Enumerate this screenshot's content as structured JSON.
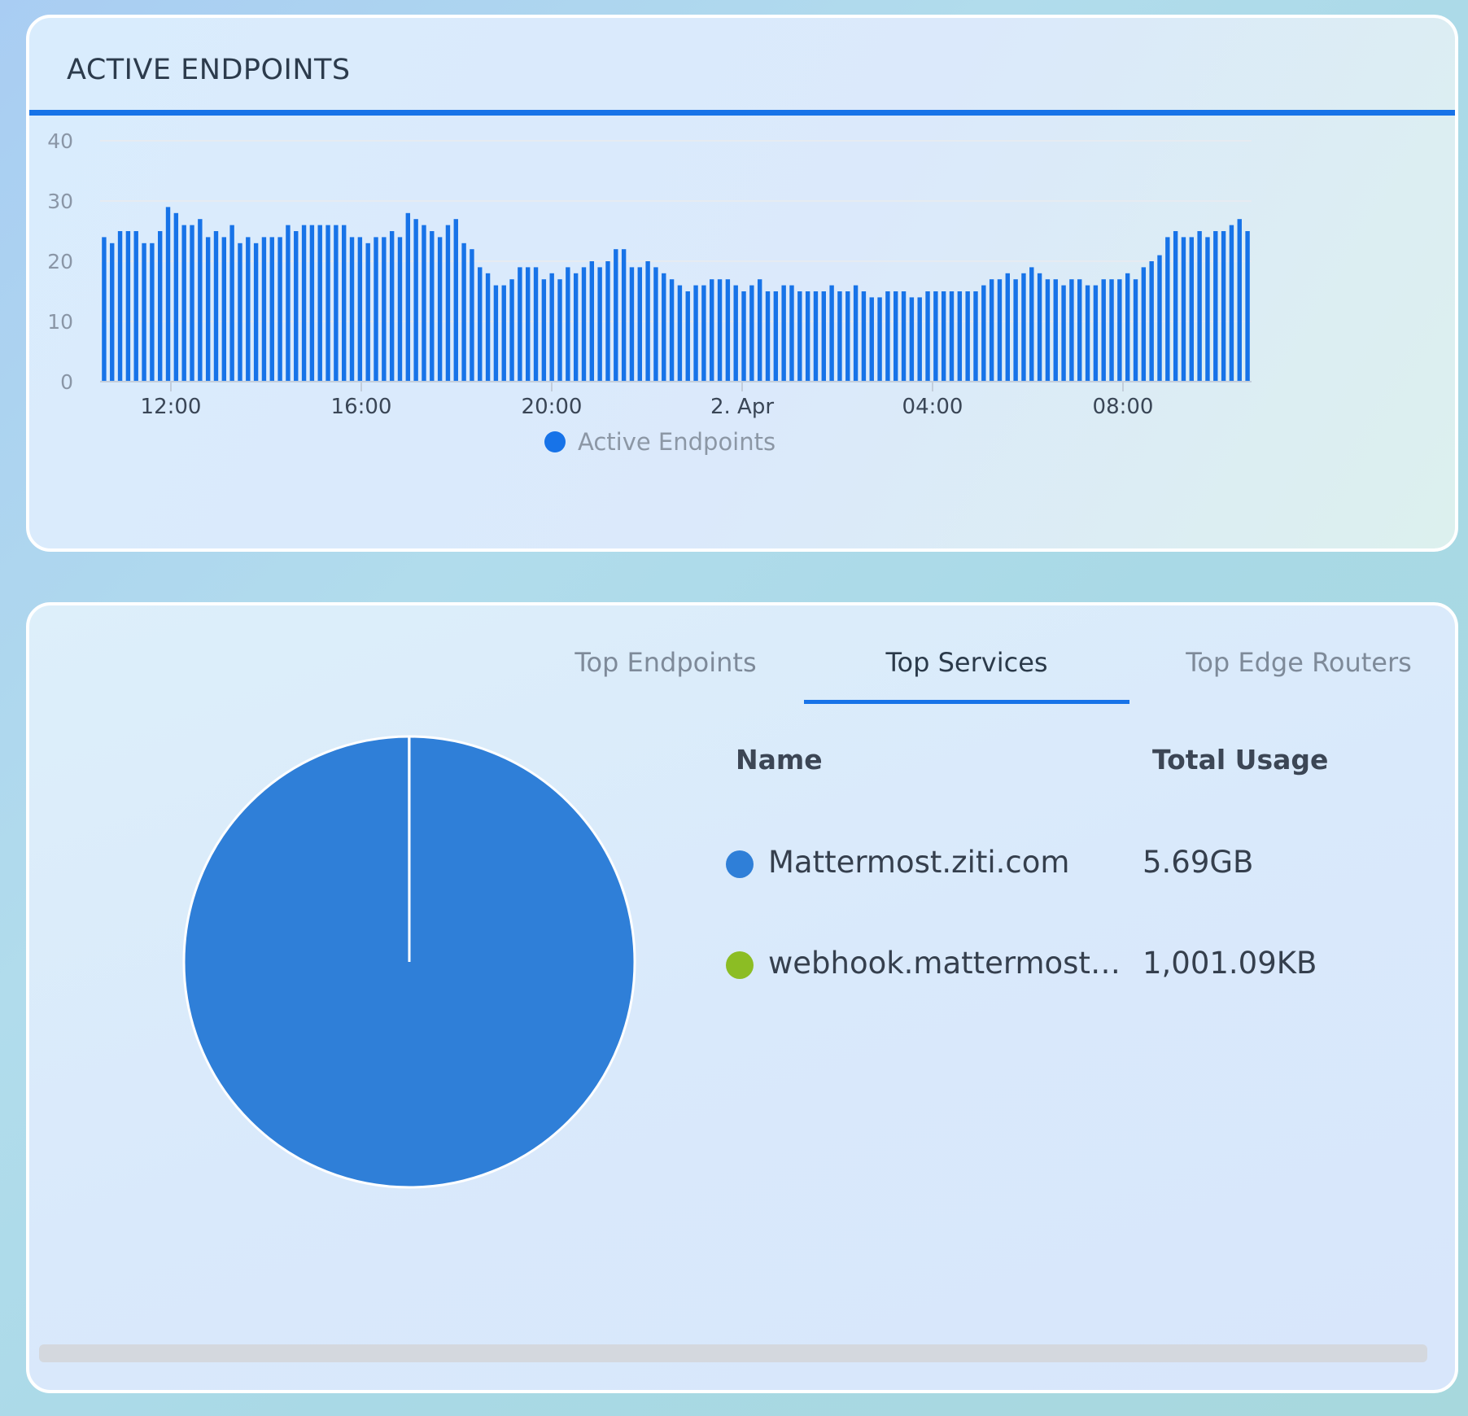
{
  "endpoints_card": {
    "title": "ACTIVE ENDPOINTS",
    "accent_color": "#1773e8"
  },
  "chart_data": {
    "type": "bar",
    "title": "ACTIVE ENDPOINTS",
    "ylim": [
      0,
      40
    ],
    "yticks": [
      "0",
      "10",
      "20",
      "30",
      "40"
    ],
    "xticks": [
      "12:00",
      "16:00",
      "20:00",
      "2. Apr",
      "04:00",
      "08:00"
    ],
    "grid": true,
    "legend_position": "bottom",
    "series": [
      {
        "name": "Active Endpoints",
        "color": "#1773e8",
        "values": [
          24,
          23,
          25,
          25,
          25,
          23,
          23,
          25,
          29,
          28,
          26,
          26,
          27,
          24,
          25,
          24,
          26,
          23,
          24,
          23,
          24,
          24,
          24,
          26,
          25,
          26,
          26,
          26,
          26,
          26,
          26,
          24,
          24,
          23,
          24,
          24,
          25,
          24,
          28,
          27,
          26,
          25,
          24,
          26,
          27,
          23,
          22,
          19,
          18,
          16,
          16,
          17,
          19,
          19,
          19,
          17,
          18,
          17,
          19,
          18,
          19,
          20,
          19,
          20,
          22,
          22,
          19,
          19,
          20,
          19,
          18,
          17,
          16,
          15,
          16,
          16,
          17,
          17,
          17,
          16,
          15,
          16,
          17,
          15,
          15,
          16,
          16,
          15,
          15,
          15,
          15,
          16,
          15,
          15,
          16,
          15,
          14,
          14,
          15,
          15,
          15,
          14,
          14,
          15,
          15,
          15,
          15,
          15,
          15,
          15,
          16,
          17,
          17,
          18,
          17,
          18,
          19,
          18,
          17,
          17,
          16,
          17,
          17,
          16,
          16,
          17,
          17,
          17,
          18,
          17,
          19,
          20,
          21,
          24,
          25,
          24,
          24,
          25,
          24,
          25,
          25,
          26,
          27,
          25
        ]
      }
    ]
  },
  "services_card": {
    "tabs": [
      {
        "label": "Top Endpoints",
        "active": false
      },
      {
        "label": "Top Services",
        "active": true
      },
      {
        "label": "Top Edge Routers",
        "active": false
      }
    ],
    "columns": {
      "name": "Name",
      "usage": "Total Usage"
    },
    "rows": [
      {
        "name": "Mattermost.ziti.com",
        "usage": "5.69GB",
        "color": "#2f7fd8"
      },
      {
        "name": "webhook.mattermost.z...",
        "usage": "1,001.09KB",
        "color": "#8cbd24"
      }
    ],
    "pie": {
      "type": "pie",
      "slices": [
        {
          "label": "Mattermost.ziti.com",
          "value_gb": 5.69,
          "color": "#2f7fd8"
        },
        {
          "label": "webhook.mattermost.z...",
          "value_gb": 0.001,
          "color": "#8cbd24"
        }
      ]
    }
  }
}
